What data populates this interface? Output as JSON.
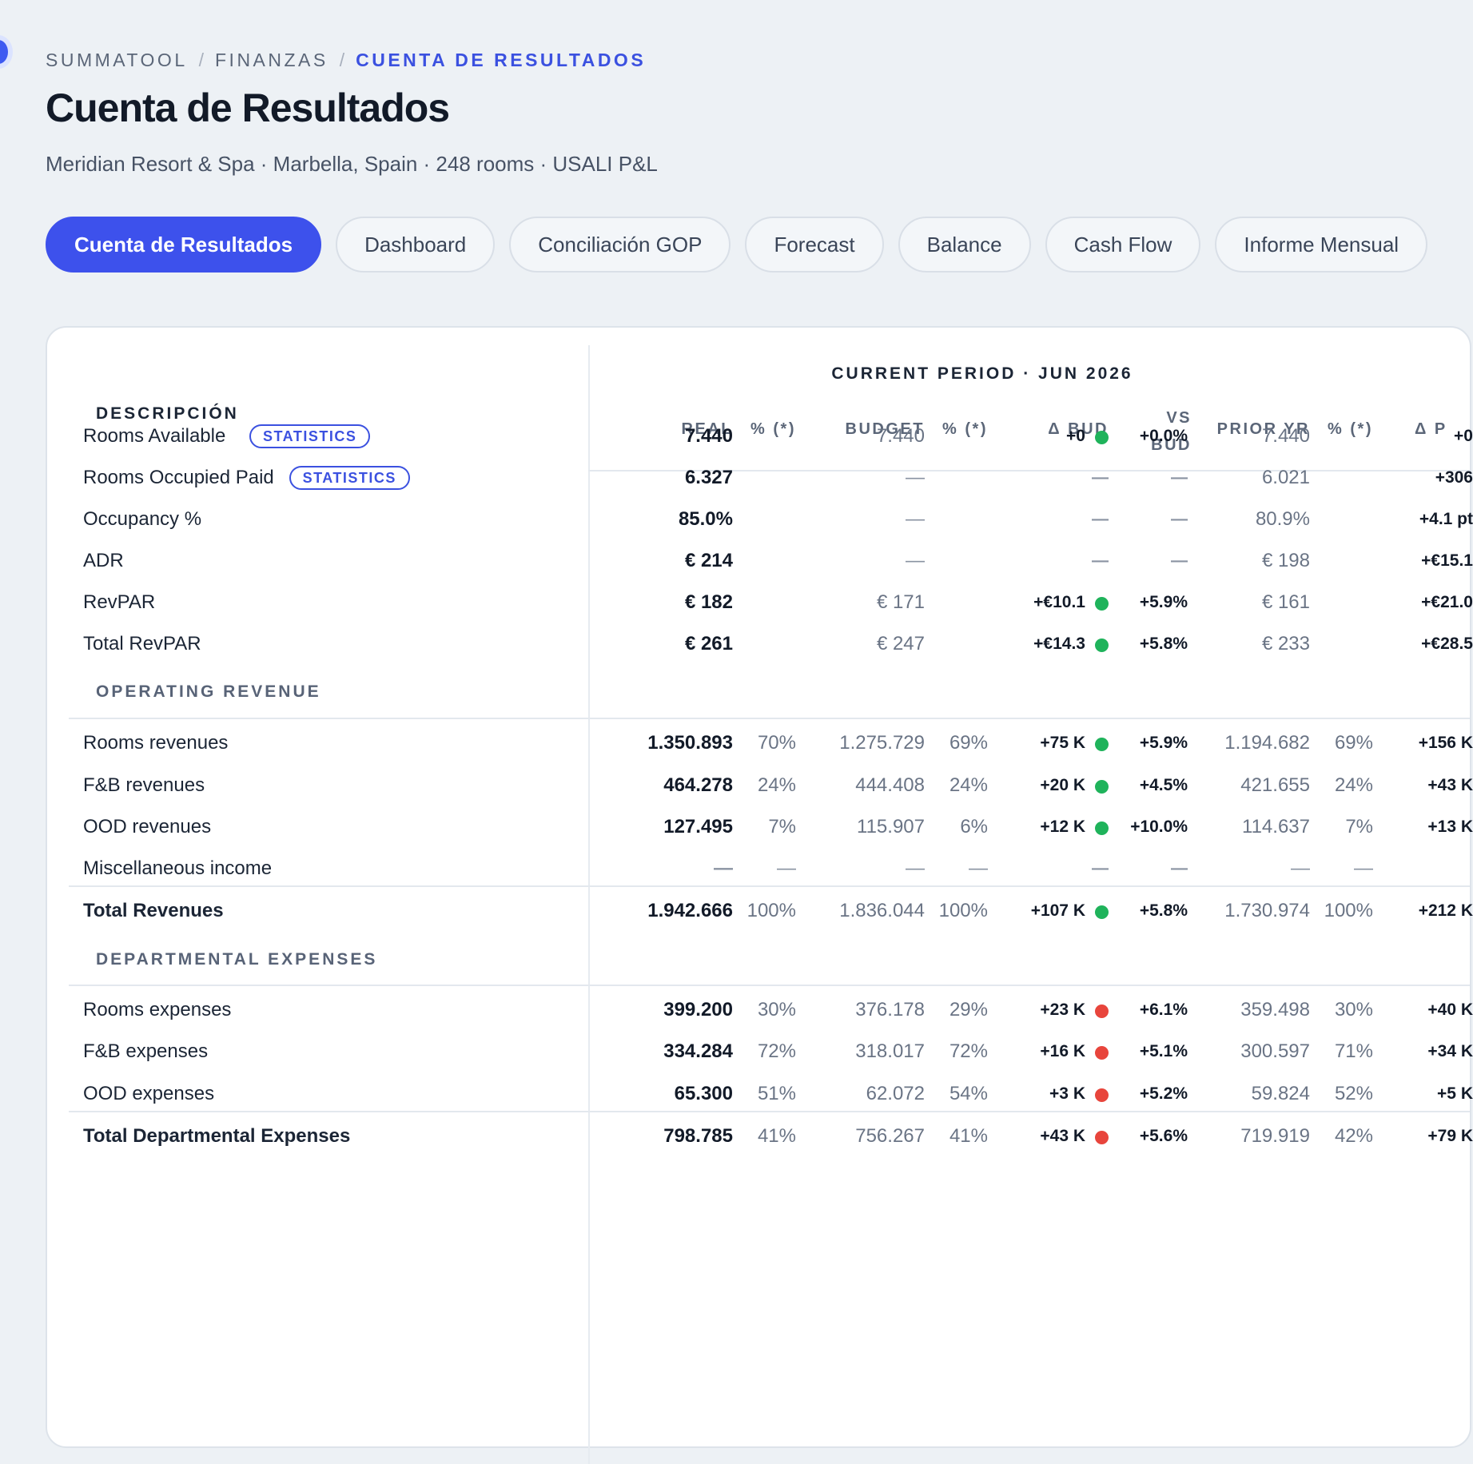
{
  "breadcrumb": {
    "items": [
      "SUMMATOOL",
      "FINANZAS"
    ],
    "current": "CUENTA DE RESULTADOS",
    "separator": "/"
  },
  "page": {
    "title": "Cuenta de Resultados",
    "subtitle": "Meridian Resort & Spa · Marbella, Spain · 248 rooms · USALI P&L"
  },
  "tabs": [
    "Cuenta de Resultados",
    "Dashboard",
    "Conciliación GOP",
    "Forecast",
    "Balance",
    "Cash Flow",
    "Informe Mensual"
  ],
  "table": {
    "period_title": "CURRENT PERIOD · JUN 2026",
    "desc_header": "DESCRIPCIÓN",
    "headers": {
      "real": "REAL",
      "pct1": "% (*)",
      "budget": "BUDGET",
      "pct2": "% (*)",
      "dbud": "Δ BUD",
      "vs1": "VS",
      "vs2": "BUD",
      "prior": "PRIOR YR",
      "pct3": "% (*)",
      "dprior": "Δ P"
    },
    "badge_label": "STATISTICS",
    "dash": "—",
    "stats": [
      {
        "label": "Rooms Available",
        "badge": true,
        "real": "7.440",
        "budget": "7.440",
        "dbud": "+0",
        "dot": "green",
        "vs": "+0.0%",
        "prior": "7.440",
        "dprior": "+0"
      },
      {
        "label": "Rooms Occupied Paid",
        "badge": true,
        "real": "6.327",
        "budget": "—",
        "dbud": "—",
        "vs": "—",
        "prior": "6.021",
        "dprior": "+306"
      },
      {
        "label": "Occupancy %",
        "real": "85.0%",
        "budget": "—",
        "dbud": "—",
        "vs": "—",
        "prior": "80.9%",
        "dprior": "+4.1 pt"
      },
      {
        "label": "ADR",
        "real": "€ 214",
        "budget": "—",
        "dbud": "—",
        "vs": "—",
        "prior": "€ 198",
        "dprior": "+€15.1"
      },
      {
        "label": "RevPAR",
        "real": "€ 182",
        "budget": "€ 171",
        "dbud": "+€10.1",
        "dot": "green",
        "vs": "+5.9%",
        "prior": "€ 161",
        "dprior": "+€21.0"
      },
      {
        "label": "Total RevPAR",
        "real": "€ 261",
        "budget": "€ 247",
        "dbud": "+€14.3",
        "dot": "green",
        "vs": "+5.8%",
        "prior": "€ 233",
        "dprior": "+€28.5"
      }
    ],
    "sections": [
      {
        "title": "OPERATING REVENUE",
        "rows": [
          {
            "label": "Rooms revenues",
            "real": "1.350.893",
            "pct1": "70%",
            "budget": "1.275.729",
            "pct2": "69%",
            "dbud": "+75 K",
            "dot": "green",
            "vs": "+5.9%",
            "prior": "1.194.682",
            "pct3": "69%",
            "dprior": "+156 K"
          },
          {
            "label": "F&B revenues",
            "real": "464.278",
            "pct1": "24%",
            "budget": "444.408",
            "pct2": "24%",
            "dbud": "+20 K",
            "dot": "green",
            "vs": "+4.5%",
            "prior": "421.655",
            "pct3": "24%",
            "dprior": "+43 K"
          },
          {
            "label": "OOD revenues",
            "real": "127.495",
            "pct1": "7%",
            "budget": "115.907",
            "pct2": "6%",
            "dbud": "+12 K",
            "dot": "green",
            "vs": "+10.0%",
            "prior": "114.637",
            "pct3": "7%",
            "dprior": "+13 K"
          },
          {
            "label": "Miscellaneous income",
            "real": "—",
            "pct1": "—",
            "budget": "—",
            "pct2": "—",
            "dbud": "—",
            "vs": "—",
            "prior": "—",
            "pct3": "—",
            "dprior": ""
          }
        ],
        "total": {
          "label": "Total Revenues",
          "real": "1.942.666",
          "pct1": "100%",
          "budget": "1.836.044",
          "pct2": "100%",
          "dbud": "+107 K",
          "dot": "green",
          "vs": "+5.8%",
          "prior": "1.730.974",
          "pct3": "100%",
          "dprior": "+212 K"
        }
      },
      {
        "title": "DEPARTMENTAL EXPENSES",
        "rows": [
          {
            "label": "Rooms expenses",
            "real": "399.200",
            "pct1": "30%",
            "budget": "376.178",
            "pct2": "29%",
            "dbud": "+23 K",
            "dot": "red",
            "vs": "+6.1%",
            "prior": "359.498",
            "pct3": "30%",
            "dprior": "+40 K"
          },
          {
            "label": "F&B expenses",
            "real": "334.284",
            "pct1": "72%",
            "budget": "318.017",
            "pct2": "72%",
            "dbud": "+16 K",
            "dot": "red",
            "vs": "+5.1%",
            "prior": "300.597",
            "pct3": "71%",
            "dprior": "+34 K"
          },
          {
            "label": "OOD expenses",
            "real": "65.300",
            "pct1": "51%",
            "budget": "62.072",
            "pct2": "54%",
            "dbud": "+3 K",
            "dot": "red",
            "vs": "+5.2%",
            "prior": "59.824",
            "pct3": "52%",
            "dprior": "+5 K"
          }
        ],
        "total": {
          "label": "Total Departmental Expenses",
          "real": "798.785",
          "pct1": "41%",
          "budget": "756.267",
          "pct2": "41%",
          "dbud": "+43 K",
          "dot": "red",
          "vs": "+5.6%",
          "prior": "719.919",
          "pct3": "42%",
          "dprior": "+79 K"
        }
      }
    ]
  },
  "colors": {
    "accent": "#3d51ec",
    "positive": "#1fb35b",
    "negative": "#e8453c"
  }
}
